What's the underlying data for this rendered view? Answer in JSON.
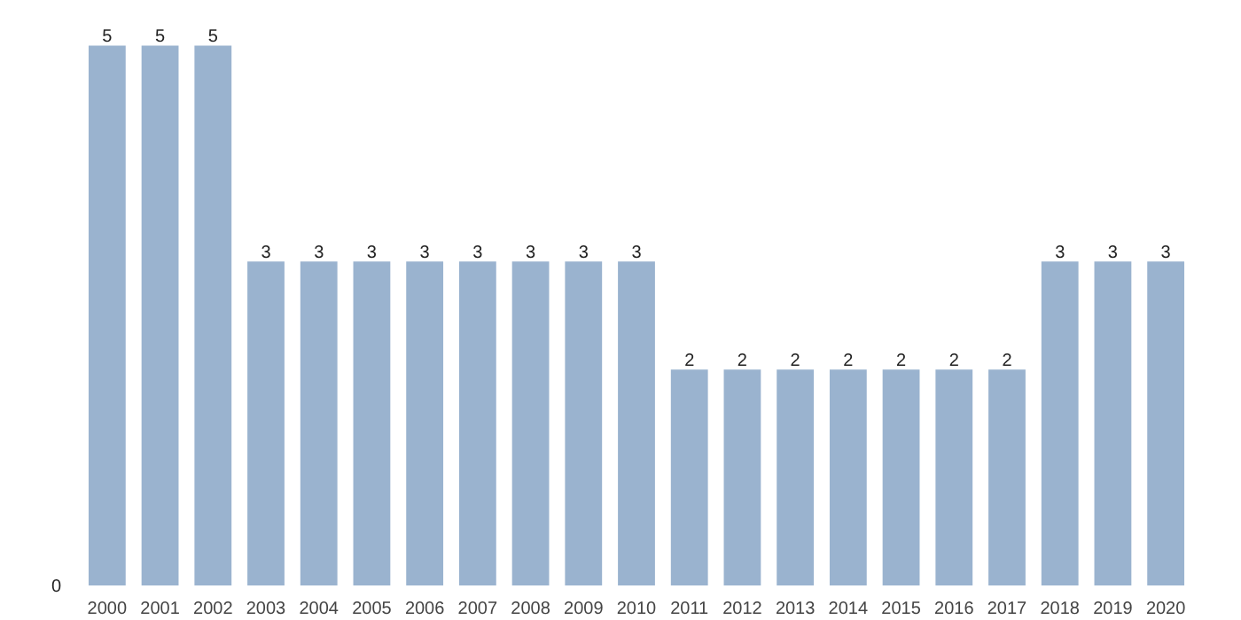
{
  "chart_data": {
    "type": "bar",
    "categories": [
      "2000",
      "2001",
      "2002",
      "2003",
      "2004",
      "2005",
      "2006",
      "2007",
      "2008",
      "2009",
      "2010",
      "2011",
      "2012",
      "2013",
      "2014",
      "2015",
      "2016",
      "2017",
      "2018",
      "2019",
      "2020"
    ],
    "values": [
      5,
      5,
      5,
      3,
      3,
      3,
      3,
      3,
      3,
      3,
      3,
      2,
      2,
      2,
      2,
      2,
      2,
      2,
      3,
      3,
      3
    ],
    "color": "#9ab3cf",
    "data_labels": true,
    "grid": false,
    "annotations": [
      "0"
    ]
  }
}
